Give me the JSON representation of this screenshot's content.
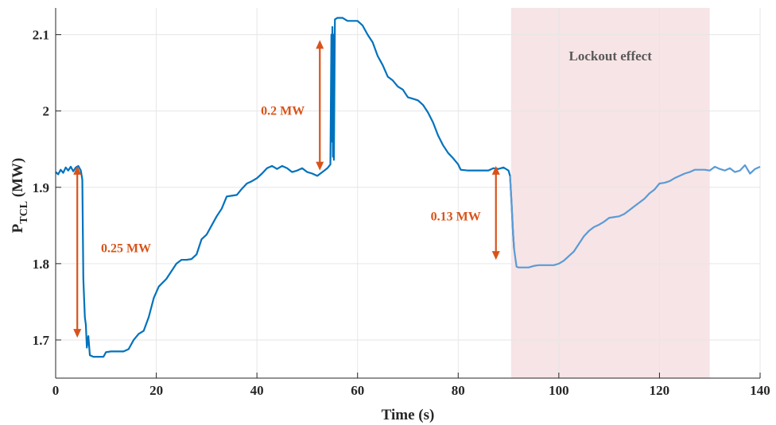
{
  "chart_data": {
    "type": "line",
    "xlabel": "Time (s)",
    "ylabel": {
      "main": "P",
      "sub": "TCL",
      "unit": " (MW)"
    },
    "xlim": [
      0,
      140
    ],
    "ylim": [
      1.65,
      2.135
    ],
    "xticks": [
      0,
      20,
      40,
      60,
      80,
      100,
      120,
      140
    ],
    "yticks": [
      1.7,
      1.8,
      1.9,
      2,
      2.1
    ],
    "ytick_labels": [
      "1.7",
      "1.8",
      "1.9",
      "2",
      "2.1"
    ],
    "grid": true,
    "colors": {
      "line": "#0072bd",
      "line_shaded": "#5b9bd5",
      "arrow": "#d95319",
      "shade": "#f7e4e6"
    },
    "shaded_region": {
      "x": [
        90.5,
        130
      ],
      "label": "Lockout effect"
    },
    "series": [
      {
        "points": [
          [
            0,
            1.92
          ],
          [
            0.5,
            1.917
          ],
          [
            1,
            1.923
          ],
          [
            1.5,
            1.919
          ],
          [
            2,
            1.926
          ],
          [
            2.5,
            1.922
          ],
          [
            3,
            1.927
          ],
          [
            3.5,
            1.921
          ],
          [
            4,
            1.926
          ],
          [
            4.5,
            1.928
          ],
          [
            5,
            1.922
          ],
          [
            5.3,
            1.91
          ],
          [
            5.5,
            1.78
          ],
          [
            5.8,
            1.73
          ],
          [
            6,
            1.72
          ],
          [
            6.2,
            1.69
          ],
          [
            6.5,
            1.705
          ],
          [
            6.8,
            1.68
          ],
          [
            7.5,
            1.678
          ],
          [
            8.5,
            1.678
          ],
          [
            9.5,
            1.678
          ],
          [
            10,
            1.684
          ],
          [
            11,
            1.685
          ],
          [
            12,
            1.685
          ],
          [
            13.5,
            1.685
          ],
          [
            14.5,
            1.688
          ],
          [
            15.5,
            1.7
          ],
          [
            16.5,
            1.708
          ],
          [
            17.5,
            1.712
          ],
          [
            18.5,
            1.73
          ],
          [
            19.5,
            1.755
          ],
          [
            20.5,
            1.77
          ],
          [
            22,
            1.78
          ],
          [
            23,
            1.79
          ],
          [
            24,
            1.8
          ],
          [
            25,
            1.805
          ],
          [
            26,
            1.805
          ],
          [
            27,
            1.806
          ],
          [
            28,
            1.812
          ],
          [
            29,
            1.832
          ],
          [
            30,
            1.838
          ],
          [
            31,
            1.85
          ],
          [
            32,
            1.862
          ],
          [
            33,
            1.872
          ],
          [
            34,
            1.888
          ],
          [
            35,
            1.889
          ],
          [
            36,
            1.89
          ],
          [
            37,
            1.898
          ],
          [
            38,
            1.905
          ],
          [
            39,
            1.908
          ],
          [
            40,
            1.912
          ],
          [
            41,
            1.918
          ],
          [
            42,
            1.925
          ],
          [
            43,
            1.928
          ],
          [
            44,
            1.924
          ],
          [
            45,
            1.928
          ],
          [
            46,
            1.925
          ],
          [
            47,
            1.92
          ],
          [
            48,
            1.922
          ],
          [
            49,
            1.925
          ],
          [
            50,
            1.92
          ],
          [
            51,
            1.918
          ],
          [
            52,
            1.915
          ],
          [
            53,
            1.92
          ],
          [
            54,
            1.925
          ],
          [
            54.6,
            1.93
          ],
          [
            54.8,
            2.1
          ],
          [
            54.9,
            1.96
          ],
          [
            55,
            2.11
          ],
          [
            55.1,
            1.94
          ],
          [
            55.2,
            2.1
          ],
          [
            55.3,
            1.936
          ],
          [
            55.5,
            2.12
          ],
          [
            56,
            2.122
          ],
          [
            57,
            2.122
          ],
          [
            58,
            2.118
          ],
          [
            59,
            2.118
          ],
          [
            60,
            2.118
          ],
          [
            61,
            2.112
          ],
          [
            62,
            2.1
          ],
          [
            63,
            2.09
          ],
          [
            64,
            2.072
          ],
          [
            65,
            2.06
          ],
          [
            66,
            2.045
          ],
          [
            67,
            2.04
          ],
          [
            68,
            2.032
          ],
          [
            69,
            2.028
          ],
          [
            70,
            2.018
          ],
          [
            71,
            2.016
          ],
          [
            72,
            2.014
          ],
          [
            73,
            2.008
          ],
          [
            74,
            1.998
          ],
          [
            75,
            1.985
          ],
          [
            76,
            1.968
          ],
          [
            77,
            1.955
          ],
          [
            78,
            1.945
          ],
          [
            79,
            1.938
          ],
          [
            80,
            1.93
          ],
          [
            80.5,
            1.923
          ],
          [
            82,
            1.922
          ],
          [
            84,
            1.922
          ],
          [
            86,
            1.922
          ],
          [
            87,
            1.925
          ],
          [
            88,
            1.924
          ],
          [
            89,
            1.926
          ],
          [
            90,
            1.922
          ],
          [
            90.3,
            1.915
          ],
          [
            90.6,
            1.88
          ],
          [
            90.9,
            1.84
          ],
          [
            91.1,
            1.82
          ],
          [
            91.3,
            1.81
          ],
          [
            91.6,
            1.796
          ],
          [
            92,
            1.795
          ],
          [
            94,
            1.795
          ],
          [
            95,
            1.797
          ],
          [
            96,
            1.798
          ],
          [
            98,
            1.798
          ],
          [
            99,
            1.798
          ],
          [
            100,
            1.8
          ],
          [
            101,
            1.804
          ],
          [
            102,
            1.81
          ],
          [
            103,
            1.816
          ],
          [
            104,
            1.826
          ],
          [
            105,
            1.836
          ],
          [
            106,
            1.843
          ],
          [
            107,
            1.848
          ],
          [
            108,
            1.851
          ],
          [
            109,
            1.855
          ],
          [
            110,
            1.86
          ],
          [
            111,
            1.861
          ],
          [
            112,
            1.862
          ],
          [
            113,
            1.865
          ],
          [
            114,
            1.87
          ],
          [
            115,
            1.875
          ],
          [
            116,
            1.88
          ],
          [
            117,
            1.885
          ],
          [
            118,
            1.892
          ],
          [
            119,
            1.897
          ],
          [
            120,
            1.905
          ],
          [
            121,
            1.906
          ],
          [
            122,
            1.908
          ],
          [
            123,
            1.912
          ],
          [
            124,
            1.915
          ],
          [
            125,
            1.918
          ],
          [
            126,
            1.92
          ],
          [
            127,
            1.923
          ],
          [
            128,
            1.923
          ],
          [
            129,
            1.923
          ],
          [
            130,
            1.922
          ],
          [
            131,
            1.927
          ],
          [
            132,
            1.924
          ],
          [
            133,
            1.922
          ],
          [
            134,
            1.925
          ],
          [
            135,
            1.92
          ],
          [
            136,
            1.922
          ],
          [
            137,
            1.929
          ],
          [
            138,
            1.918
          ],
          [
            139,
            1.924
          ],
          [
            140,
            1.927
          ]
        ]
      }
    ],
    "annotations": [
      {
        "label": "0.25 MW",
        "x": 4.3,
        "y_from": 1.928,
        "y_to": 1.703,
        "label_x": 9,
        "label_y": 1.82,
        "anchor": "start"
      },
      {
        "label": "0.2 MW",
        "x": 52.5,
        "y_from": 2.093,
        "y_to": 1.922,
        "label_x": 49.5,
        "label_y": 2.0,
        "anchor": "end"
      },
      {
        "label": "0.13 MW",
        "x": 87.5,
        "y_from": 1.928,
        "y_to": 1.805,
        "label_x": 84.5,
        "label_y": 1.862,
        "anchor": "end"
      }
    ]
  }
}
